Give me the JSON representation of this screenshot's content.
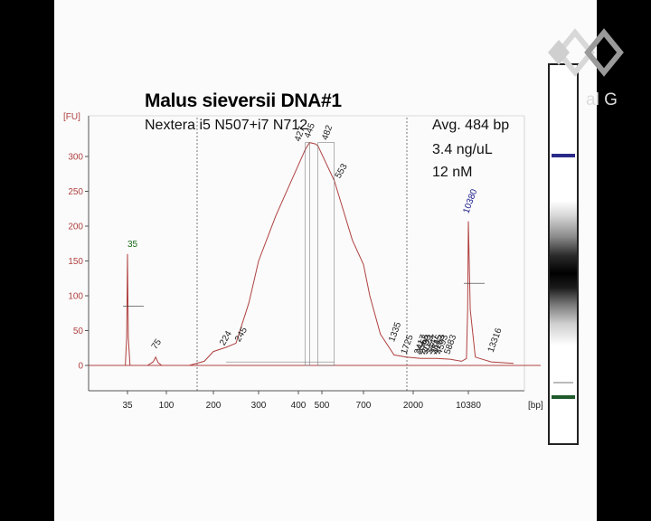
{
  "title": "Malus sieversii DNA#1",
  "subtitle": "Nextera i5 N507+i7 N712",
  "stats": {
    "avg": "Avg. 484 bp",
    "concentration": "3.4 ng/uL",
    "molarity": "12 nM"
  },
  "logo_text": "al G",
  "colors": {
    "trace": "#b04040",
    "y_axis_text": "#b04040",
    "marker_peak_label": "#1a6b1a",
    "upper_marker_label": "#1a1a8a",
    "gel_upper_band": "#2a2a8a",
    "gel_lower_band": "#1f5a2a"
  },
  "chart_data": {
    "type": "line",
    "y_unit": "[FU]",
    "x_unit": "[bp]",
    "ylim": [
      -15,
      335
    ],
    "yticks": [
      "0",
      "50",
      "100",
      "150",
      "200",
      "250",
      "300"
    ],
    "xticks": [
      "35",
      "100",
      "200",
      "300",
      "400",
      "500",
      "700",
      "2000",
      "10380"
    ],
    "grid": false,
    "trace": [
      {
        "bp": "35",
        "fu": 0
      },
      {
        "bp": "35",
        "fu": 160
      },
      {
        "bp": "75",
        "fu": 12
      },
      {
        "bp": "200",
        "fu": 20
      },
      {
        "bp": "300",
        "fu": 175
      },
      {
        "bp": "445",
        "fu": 320
      },
      {
        "bp": "482",
        "fu": 315
      },
      {
        "bp": "700",
        "fu": 140
      },
      {
        "bp": "1335",
        "fu": 15
      },
      {
        "bp": "10380",
        "fu": 0
      },
      {
        "bp": "10380",
        "fu": 207
      },
      {
        "bp": "13316",
        "fu": 5
      }
    ],
    "peaks": [
      {
        "label": "35",
        "fu": 160,
        "kind": "lower-marker"
      },
      {
        "label": "75",
        "fu": 12
      },
      {
        "label": "224",
        "fu": 20
      },
      {
        "label": "245",
        "fu": 28
      },
      {
        "label": "427",
        "fu": 313
      },
      {
        "label": "445",
        "fu": 318
      },
      {
        "label": "482",
        "fu": 315
      },
      {
        "label": "553",
        "fu": 260
      },
      {
        "label": "1335",
        "fu": 15
      },
      {
        "label": "1725",
        "fu": 12
      },
      {
        "label": "2417",
        "fu": 10
      },
      {
        "label": "2563",
        "fu": 10
      },
      {
        "label": "2793",
        "fu": 10
      },
      {
        "label": "3023",
        "fu": 10
      },
      {
        "label": "3447",
        "fu": 10
      },
      {
        "label": "3845",
        "fu": 10
      },
      {
        "label": "4163",
        "fu": 10
      },
      {
        "label": "4593",
        "fu": 10
      },
      {
        "label": "5883",
        "fu": 10
      },
      {
        "label": "10380",
        "fu": 207,
        "kind": "upper-marker"
      },
      {
        "label": "13316",
        "fu": 5
      }
    ]
  }
}
